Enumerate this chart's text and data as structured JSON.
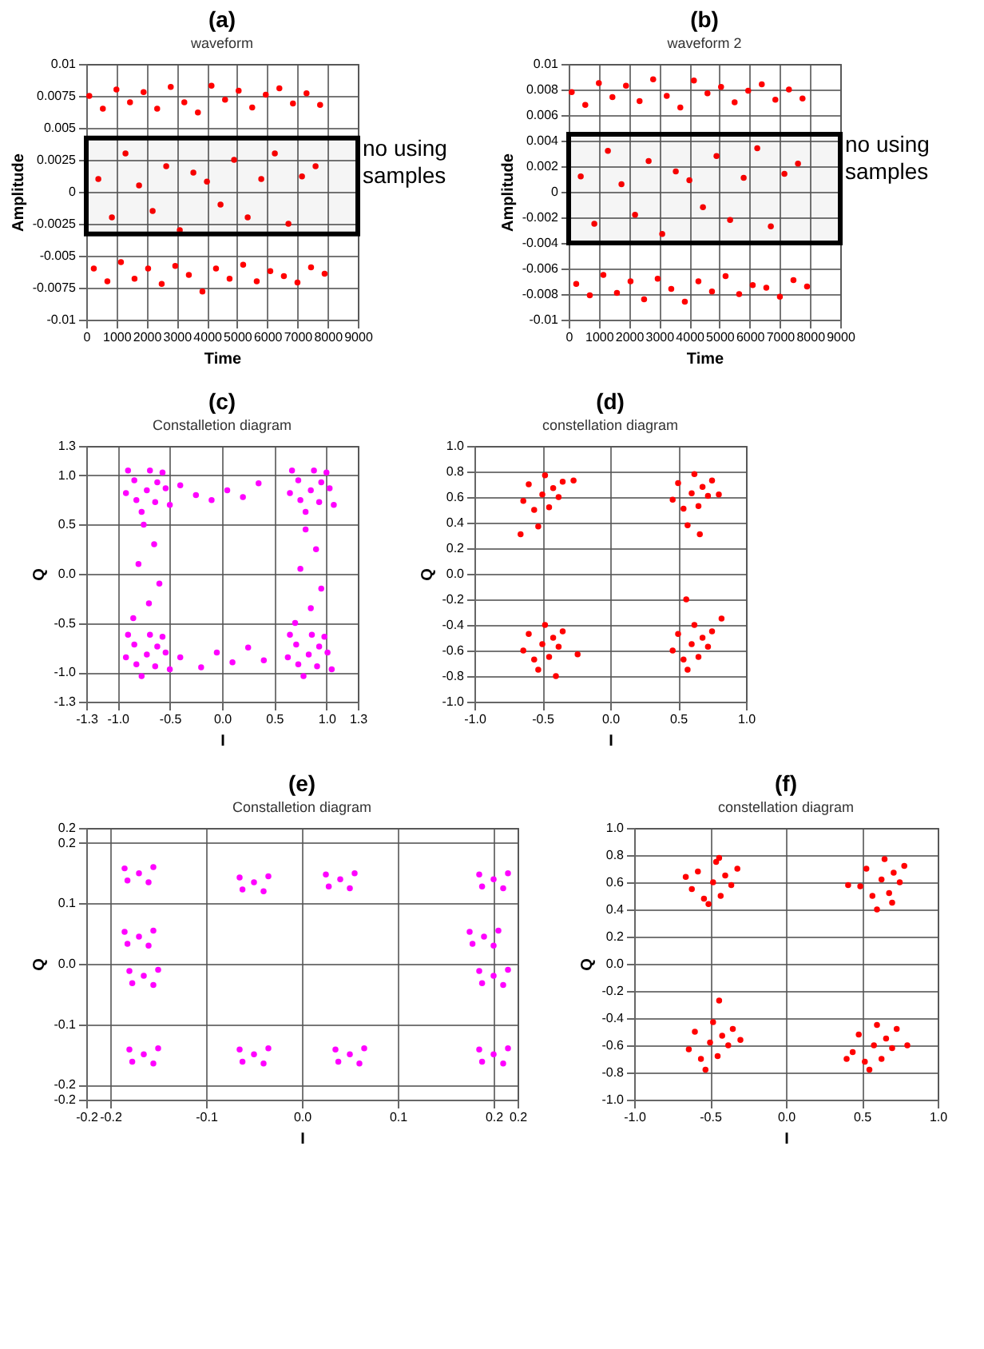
{
  "chart_data": [
    {
      "type": "scatter",
      "title": "(a)",
      "subtitle": "waveform",
      "xlabel": "Time",
      "ylabel": "Amplitude",
      "grid": true,
      "marker": "circle",
      "xlim": [
        0,
        9000
      ],
      "xticks": [
        0,
        1000,
        2000,
        3000,
        4000,
        5000,
        6000,
        7000,
        8000,
        9000
      ],
      "ylim": [
        -0.01,
        0.01
      ],
      "yticks": [
        0.01,
        0.0075,
        0.005,
        0.0025,
        0,
        -0.0025,
        -0.005,
        -0.0075,
        -0.01
      ],
      "bands": [
        {
          "axis": "y",
          "from": -0.0033,
          "to": 0.0042,
          "label": "no using samples",
          "color": "#000000"
        }
      ],
      "x": [
        100,
        250,
        400,
        550,
        700,
        850,
        1000,
        1150,
        1300,
        1450,
        1600,
        1750,
        1900,
        2050,
        2200,
        2350,
        2500,
        2650,
        2800,
        2950,
        3100,
        3250,
        3400,
        3550,
        3700,
        3850,
        4000,
        4150,
        4300,
        4450,
        4600,
        4750,
        4900,
        5050,
        5200,
        5350,
        5500,
        5650,
        5800,
        5950,
        6100,
        6250,
        6400,
        6550,
        6700,
        6850,
        7000,
        7150,
        7300,
        7450,
        7600,
        7750,
        7900
      ],
      "series": [
        {
          "color": "#ff0000",
          "values": [
            0.0075,
            -0.006,
            0.001,
            0.0065,
            -0.007,
            -0.002,
            0.008,
            -0.0055,
            0.003,
            0.007,
            -0.0068,
            0.0005,
            0.0078,
            -0.006,
            -0.0015,
            0.0065,
            -0.0072,
            0.002,
            0.0082,
            -0.0058,
            -0.003,
            0.007,
            -0.0065,
            0.0015,
            0.0062,
            -0.0078,
            0.0008,
            0.0083,
            -0.006,
            -0.001,
            0.0072,
            -0.0068,
            0.0025,
            0.0079,
            -0.0057,
            -0.002,
            0.0066,
            -0.007,
            0.001,
            0.0076,
            -0.0062,
            0.003,
            0.0081,
            -0.0066,
            -0.0025,
            0.0069,
            -0.0071,
            0.0012,
            0.0077,
            -0.0059,
            0.002,
            0.0068,
            -0.0064
          ]
        }
      ]
    },
    {
      "type": "scatter",
      "title": "(b)",
      "subtitle": "waveform 2",
      "xlabel": "Time",
      "ylabel": "Amplitude",
      "grid": true,
      "marker": "circle",
      "xlim": [
        0,
        9000
      ],
      "xticks": [
        0,
        1000,
        2000,
        3000,
        4000,
        5000,
        6000,
        7000,
        8000,
        9000
      ],
      "ylim": [
        -0.01,
        0.01
      ],
      "yticks": [
        0.01,
        0.008,
        0.006,
        0.004,
        0.002,
        0,
        -0.002,
        -0.004,
        -0.006,
        -0.008,
        -0.01
      ],
      "bands": [
        {
          "axis": "y",
          "from": -0.004,
          "to": 0.0045,
          "label": "no using samples",
          "color": "#000000"
        }
      ],
      "x": [
        100,
        250,
        400,
        550,
        700,
        850,
        1000,
        1150,
        1300,
        1450,
        1600,
        1750,
        1900,
        2050,
        2200,
        2350,
        2500,
        2650,
        2800,
        2950,
        3100,
        3250,
        3400,
        3550,
        3700,
        3850,
        4000,
        4150,
        4300,
        4450,
        4600,
        4750,
        4900,
        5050,
        5200,
        5350,
        5500,
        5650,
        5800,
        5950,
        6100,
        6250,
        6400,
        6550,
        6700,
        6850,
        7000,
        7150,
        7300,
        7450,
        7600,
        7750,
        7900
      ],
      "series": [
        {
          "color": "#ff0000",
          "values": [
            0.0078,
            -0.0072,
            0.0012,
            0.0068,
            -0.0081,
            -0.0025,
            0.0085,
            -0.0065,
            0.0032,
            0.0074,
            -0.0079,
            0.0006,
            0.0083,
            -0.007,
            -0.0018,
            0.0071,
            -0.0084,
            0.0024,
            0.0088,
            -0.0068,
            -0.0033,
            0.0075,
            -0.0076,
            0.0016,
            0.0066,
            -0.0086,
            0.0009,
            0.0087,
            -0.007,
            -0.0012,
            0.0077,
            -0.0078,
            0.0028,
            0.0082,
            -0.0066,
            -0.0022,
            0.007,
            -0.008,
            0.0011,
            0.0079,
            -0.0073,
            0.0034,
            0.0084,
            -0.0075,
            -0.0027,
            0.0072,
            -0.0082,
            0.0014,
            0.008,
            -0.0069,
            0.0022,
            0.0073,
            -0.0074
          ]
        }
      ]
    },
    {
      "type": "scatter",
      "title": "(c)",
      "subtitle": "Constalletion diagram",
      "xlabel": "I",
      "ylabel": "Q",
      "grid": true,
      "marker": "circle",
      "xlim": [
        -1.3,
        1.3
      ],
      "xticks": [
        -1.3,
        {
          "value": -1,
          "label": "-1.0"
        },
        -0.5,
        {
          "value": 0,
          "label": "0.0"
        },
        0.5,
        {
          "value": 1,
          "label": "1.0"
        },
        1.3
      ],
      "ylim": [
        -1.3,
        1.3
      ],
      "yticks": [
        1.3,
        {
          "value": 1,
          "label": "1.0"
        },
        0.5,
        {
          "value": 0,
          "label": "0.0"
        },
        -0.5,
        {
          "value": -1,
          "label": "-1.0"
        },
        -1.3
      ],
      "x": [
        -0.72,
        -0.62,
        -0.84,
        -0.64,
        -0.82,
        -0.54,
        -0.92,
        -0.69,
        -0.57,
        -0.77,
        -0.5,
        -0.9,
        0.85,
        0.95,
        0.73,
        0.93,
        0.75,
        1.03,
        0.65,
        0.88,
        1.0,
        0.8,
        1.07,
        0.67,
        -0.72,
        -0.62,
        -0.84,
        -0.64,
        -0.82,
        -0.54,
        -0.92,
        -0.69,
        -0.57,
        -0.77,
        -0.5,
        -0.9,
        0.83,
        0.93,
        0.71,
        0.91,
        0.73,
        1.01,
        0.63,
        0.86,
        0.98,
        0.78,
        1.05,
        0.65,
        -0.4,
        -0.25,
        -0.1,
        0.05,
        0.2,
        0.35,
        -0.4,
        -0.2,
        -0.05,
        0.1,
        0.25,
        0.4,
        -0.75,
        -0.65,
        -0.8,
        -0.6,
        -0.7,
        -0.85,
        0.8,
        0.9,
        0.75,
        0.95,
        0.85,
        0.7
      ],
      "series": [
        {
          "color": "#ff00ff",
          "values": [
            0.85,
            0.93,
            0.95,
            0.73,
            0.75,
            0.87,
            0.82,
            1.05,
            1.03,
            0.63,
            0.7,
            1.05,
            0.85,
            0.93,
            0.95,
            0.73,
            0.75,
            0.87,
            0.82,
            1.05,
            1.03,
            0.63,
            0.7,
            1.05,
            -0.82,
            -0.74,
            -0.72,
            -0.94,
            -0.92,
            -0.8,
            -0.85,
            -0.62,
            -0.64,
            -1.04,
            -0.97,
            -0.62,
            -0.82,
            -0.74,
            -0.72,
            -0.94,
            -0.92,
            -0.8,
            -0.85,
            -0.62,
            -0.64,
            -1.04,
            -0.97,
            -0.62,
            0.9,
            0.8,
            0.75,
            0.85,
            0.78,
            0.92,
            -0.85,
            -0.95,
            -0.8,
            -0.9,
            -0.75,
            -0.88,
            0.5,
            0.3,
            0.1,
            -0.1,
            -0.3,
            -0.45,
            0.45,
            0.25,
            0.05,
            -0.15,
            -0.35,
            -0.5
          ]
        }
      ]
    },
    {
      "type": "scatter",
      "title": "(d)",
      "subtitle": "constellation diagram",
      "xlabel": "I",
      "ylabel": "Q",
      "grid": true,
      "marker": "circle",
      "xlim": [
        -1,
        1
      ],
      "xticks": [
        {
          "value": -1,
          "label": "-1.0"
        },
        -0.5,
        {
          "value": 0,
          "label": "0.0"
        },
        0.5,
        {
          "value": 1,
          "label": "1.0"
        }
      ],
      "ylim": [
        -1,
        1
      ],
      "yticks": [
        {
          "value": 1,
          "label": "1.0"
        },
        0.8,
        0.6,
        0.4,
        0.2,
        {
          "value": 0,
          "label": "0.0"
        },
        -0.2,
        -0.4,
        -0.6,
        -0.8,
        {
          "value": -1,
          "label": "-1.0"
        }
      ],
      "x": [
        -0.5,
        -0.42,
        -0.6,
        -0.45,
        -0.56,
        -0.38,
        -0.64,
        -0.48,
        -0.35,
        -0.53,
        -0.27,
        -0.66,
        0.6,
        0.68,
        0.5,
        0.65,
        0.54,
        0.72,
        0.46,
        0.62,
        0.75,
        0.57,
        0.8,
        0.66,
        -0.5,
        -0.42,
        -0.6,
        -0.45,
        -0.56,
        -0.38,
        -0.64,
        -0.48,
        -0.35,
        -0.53,
        -0.24,
        -0.4,
        0.6,
        0.68,
        0.5,
        0.65,
        0.54,
        0.72,
        0.46,
        0.62,
        0.75,
        0.57,
        0.82,
        0.56
      ],
      "series": [
        {
          "color": "#ff0000",
          "values": [
            0.62,
            0.67,
            0.7,
            0.52,
            0.5,
            0.6,
            0.57,
            0.77,
            0.72,
            0.37,
            0.73,
            0.31,
            0.63,
            0.68,
            0.71,
            0.53,
            0.51,
            0.61,
            0.58,
            0.78,
            0.73,
            0.38,
            0.62,
            0.31,
            -0.55,
            -0.5,
            -0.47,
            -0.65,
            -0.67,
            -0.57,
            -0.6,
            -0.4,
            -0.45,
            -0.75,
            -0.63,
            -0.8,
            -0.55,
            -0.5,
            -0.47,
            -0.65,
            -0.67,
            -0.57,
            -0.6,
            -0.4,
            -0.45,
            -0.75,
            -0.35,
            -0.2
          ]
        }
      ]
    },
    {
      "type": "scatter",
      "title": "(e)",
      "subtitle": "Constalletion diagram",
      "xlabel": "I",
      "ylabel": "Q",
      "grid": true,
      "marker": "circle",
      "xlim": [
        -0.225,
        0.225
      ],
      "xticks": [
        {
          "value": -0.225,
          "label": "-0.2"
        },
        -0.2,
        -0.1,
        {
          "value": 0,
          "label": "0.0"
        },
        0.1,
        0.2,
        {
          "value": 0.225,
          "label": "0.2"
        }
      ],
      "ylim": [
        -0.225,
        0.225
      ],
      "yticks": [
        {
          "value": 0.225,
          "label": "0.2"
        },
        0.2,
        0.1,
        {
          "value": 0,
          "label": "0.0"
        },
        -0.1,
        -0.2,
        {
          "value": -0.225,
          "label": "-0.2"
        }
      ],
      "x": [
        -0.17,
        -0.155,
        -0.185,
        -0.16,
        -0.182,
        -0.05,
        -0.035,
        -0.065,
        -0.04,
        -0.062,
        0.04,
        0.055,
        0.025,
        0.05,
        0.028,
        0.2,
        0.215,
        0.185,
        0.21,
        0.188,
        -0.17,
        -0.155,
        -0.185,
        -0.16,
        -0.182,
        -0.165,
        -0.15,
        -0.18,
        -0.155,
        -0.177,
        0.19,
        0.205,
        0.175,
        0.2,
        0.178,
        0.2,
        0.215,
        0.185,
        0.21,
        0.188,
        -0.165,
        -0.15,
        -0.18,
        -0.155,
        -0.177,
        -0.05,
        -0.035,
        -0.065,
        -0.04,
        -0.062,
        0.05,
        0.065,
        0.035,
        0.06,
        0.038,
        0.2,
        0.215,
        0.185,
        0.21,
        0.188
      ],
      "series": [
        {
          "color": "#ff00ff",
          "values": [
            0.15,
            0.16,
            0.158,
            0.135,
            0.138,
            0.135,
            0.145,
            0.143,
            0.12,
            0.123,
            0.14,
            0.15,
            0.148,
            0.125,
            0.128,
            0.14,
            0.15,
            0.148,
            0.125,
            0.128,
            0.045,
            0.055,
            0.053,
            0.03,
            0.033,
            -0.02,
            -0.01,
            -0.012,
            -0.035,
            -0.032,
            0.045,
            0.055,
            0.053,
            0.03,
            0.033,
            -0.02,
            -0.01,
            -0.012,
            -0.035,
            -0.032,
            -0.15,
            -0.14,
            -0.142,
            -0.165,
            -0.162,
            -0.15,
            -0.14,
            -0.142,
            -0.165,
            -0.162,
            -0.15,
            -0.14,
            -0.142,
            -0.165,
            -0.162,
            -0.15,
            -0.14,
            -0.142,
            -0.165,
            -0.162
          ]
        }
      ]
    },
    {
      "type": "scatter",
      "title": "(f)",
      "subtitle": "constellation diagram",
      "xlabel": "I",
      "ylabel": "Q",
      "grid": true,
      "marker": "circle",
      "xlim": [
        -1,
        1
      ],
      "xticks": [
        {
          "value": -1,
          "label": "-1.0"
        },
        -0.5,
        {
          "value": 0,
          "label": "0.0"
        },
        0.5,
        {
          "value": 1,
          "label": "1.0"
        }
      ],
      "ylim": [
        -1,
        1
      ],
      "yticks": [
        {
          "value": 1,
          "label": "1.0"
        },
        0.8,
        0.6,
        0.4,
        0.2,
        {
          "value": 0,
          "label": "0.0"
        },
        -0.2,
        -0.4,
        -0.6,
        -0.8,
        {
          "value": -1,
          "label": "-1.0"
        }
      ],
      "x": [
        -0.48,
        -0.4,
        -0.58,
        -0.43,
        -0.54,
        -0.36,
        -0.62,
        -0.46,
        -0.32,
        -0.51,
        -0.66,
        -0.44,
        0.63,
        0.71,
        0.53,
        0.68,
        0.57,
        0.75,
        0.49,
        0.65,
        0.78,
        0.6,
        0.41,
        0.7,
        -0.5,
        -0.42,
        -0.6,
        -0.45,
        -0.56,
        -0.38,
        -0.64,
        -0.48,
        -0.35,
        -0.53,
        -0.3,
        -0.44,
        0.58,
        0.66,
        0.48,
        0.63,
        0.52,
        0.7,
        0.44,
        0.6,
        0.73,
        0.55,
        0.8,
        0.4
      ],
      "series": [
        {
          "color": "#ff0000",
          "values": [
            0.6,
            0.65,
            0.68,
            0.5,
            0.48,
            0.58,
            0.55,
            0.75,
            0.7,
            0.44,
            0.64,
            0.78,
            0.62,
            0.67,
            0.7,
            0.52,
            0.5,
            0.6,
            0.57,
            0.77,
            0.72,
            0.4,
            0.58,
            0.45,
            -0.58,
            -0.53,
            -0.5,
            -0.68,
            -0.7,
            -0.6,
            -0.63,
            -0.43,
            -0.48,
            -0.78,
            -0.56,
            -0.27,
            -0.6,
            -0.55,
            -0.52,
            -0.7,
            -0.72,
            -0.62,
            -0.65,
            -0.45,
            -0.48,
            -0.78,
            -0.6,
            -0.7
          ]
        }
      ]
    }
  ]
}
